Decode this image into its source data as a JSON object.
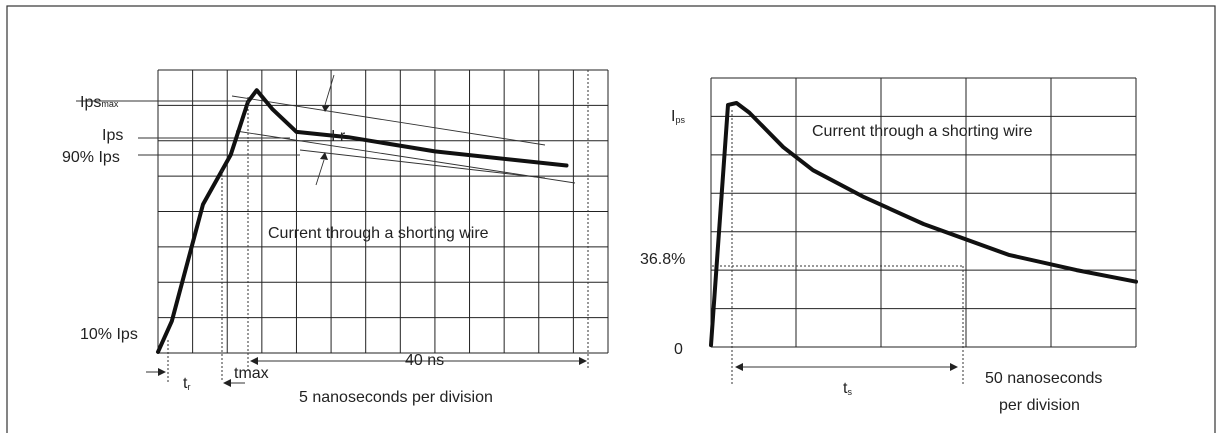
{
  "chart_data": [
    {
      "type": "line",
      "annotation": "Current through a shorting wire",
      "xlabel": "5 nanoseconds per division",
      "y_labels": {
        "peak_main": "Ips",
        "peak_sub": "max",
        "ips": "Ips",
        "ips90": "90% Ips",
        "ips10": "10% Ips"
      },
      "x_labels": {
        "t_r_main": "t",
        "t_r_sub": "r",
        "tmax": "tmax",
        "span": "40 ns"
      },
      "slope_label": "I r",
      "grid": {
        "cols": 13,
        "rows": 8
      },
      "series": [
        {
          "x": [
            0,
            0.4,
            1.3,
            2.1,
            2.6,
            2.85,
            3.3,
            4.0,
            5.5,
            8.0,
            11.8
          ],
          "y": [
            0.03,
            0.9,
            4.2,
            5.6,
            7.1,
            7.43,
            6.9,
            6.25,
            6.1,
            5.7,
            5.3
          ]
        }
      ]
    },
    {
      "type": "line",
      "annotation": "Current through a shorting wire",
      "xlabel_lines": [
        "50 nanoseconds",
        "per division"
      ],
      "y_labels": {
        "peak_main": "I",
        "peak_sub": "ps",
        "pct": "36.8%",
        "zero": "0"
      },
      "x_labels": {
        "ts_main": "t",
        "ts_sub": "s"
      },
      "grid": {
        "cols": 5,
        "rows": 7
      },
      "series": [
        {
          "x": [
            0,
            0.2,
            0.3,
            0.45,
            0.85,
            1.2,
            1.8,
            2.5,
            3.5,
            4.3,
            5.0
          ],
          "y": [
            0.05,
            6.3,
            6.35,
            6.1,
            5.2,
            4.6,
            3.9,
            3.2,
            2.4,
            2.0,
            1.7
          ]
        }
      ]
    }
  ]
}
